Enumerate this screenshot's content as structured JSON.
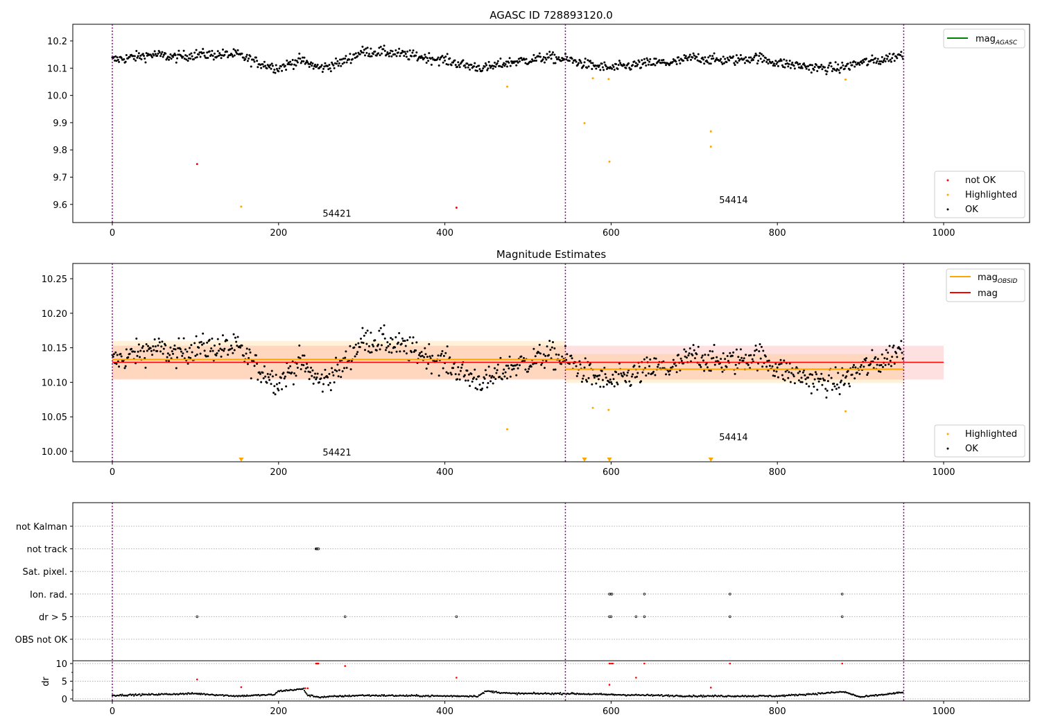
{
  "chart_data": [
    {
      "type": "scatter",
      "title": "AGASC ID 728893120.0",
      "xlim": [
        -47.5,
        1103.5
      ],
      "ylim": [
        9.534,
        10.261
      ],
      "xticks": [
        "0",
        "200",
        "400",
        "600",
        "800",
        "1000"
      ],
      "yticks": [
        "9.6",
        "9.7",
        "9.8",
        "9.9",
        "10.0",
        "10.1",
        "10.2"
      ],
      "legend_lines": [
        {
          "label": "mag",
          "sub": "AGASC",
          "color": "#008000"
        }
      ],
      "legend_points": [
        {
          "label": "not OK",
          "color": "#ff0000"
        },
        {
          "label": "Highlighted",
          "color": "#ffa500"
        },
        {
          "label": "OK",
          "color": "#000000"
        }
      ],
      "obsid_boundaries": [
        0,
        545,
        952
      ],
      "annotations": [
        {
          "text": "54421",
          "x": 253,
          "y": 9.555
        },
        {
          "text": "54414",
          "x": 730,
          "y": 9.605
        }
      ],
      "ok_trend": {
        "x_step": 25,
        "values": [
          10.13,
          10.14,
          10.15,
          10.14,
          10.15,
          10.15,
          10.15,
          10.12,
          10.1,
          10.13,
          10.1,
          10.12,
          10.16,
          10.16,
          10.15,
          10.14,
          10.13,
          10.11,
          10.1,
          10.12,
          10.13,
          10.14,
          10.13,
          10.11,
          10.1,
          10.11,
          10.12,
          10.12,
          10.14,
          10.13,
          10.13,
          10.14,
          10.12,
          10.11,
          10.1,
          10.1,
          10.12,
          10.13,
          10.15
        ],
        "noise": 0.016,
        "n_points": 952
      },
      "not_ok": [
        [
          102,
          9.748
        ],
        [
          414,
          9.588
        ]
      ],
      "highlighted": [
        [
          155,
          9.592
        ],
        [
          475,
          10.032
        ],
        [
          568,
          9.898
        ],
        [
          578,
          10.063
        ],
        [
          597,
          10.06
        ],
        [
          598,
          9.757
        ],
        [
          720,
          9.868
        ],
        [
          720,
          9.812
        ],
        [
          882,
          10.058
        ]
      ]
    },
    {
      "type": "scatter",
      "title": "Magnitude Estimates",
      "xlim": [
        -47.5,
        1103.5
      ],
      "ylim": [
        9.985,
        10.272
      ],
      "xticks": [
        "0",
        "200",
        "400",
        "600",
        "800",
        "1000"
      ],
      "yticks": [
        "10.00",
        "10.05",
        "10.10",
        "10.15",
        "10.20",
        "10.25"
      ],
      "legend_lines": [
        {
          "label": "mag",
          "sub": "OBSID",
          "color": "#ffa500"
        },
        {
          "label": "mag",
          "sub": "",
          "color": "#ff0000"
        }
      ],
      "legend_points": [
        {
          "label": "Highlighted",
          "color": "#ffa500"
        },
        {
          "label": "OK",
          "color": "#000000"
        }
      ],
      "mag": {
        "x": [
          0,
          1000
        ],
        "value": 10.129,
        "band": [
          10.104,
          10.153
        ]
      },
      "mag_obsid": [
        {
          "x": [
            0,
            545
          ],
          "value": 10.133,
          "band": [
            10.105,
            10.16
          ]
        },
        {
          "x": [
            545,
            952
          ],
          "value": 10.119,
          "band": [
            10.099,
            10.141
          ]
        }
      ],
      "annotations": [
        {
          "text": "54421",
          "x": 253,
          "y": 9.994
        },
        {
          "text": "54414",
          "x": 730,
          "y": 10.016
        }
      ]
    },
    {
      "type": "scatter",
      "title": "",
      "flag_rows": [
        "not Kalman",
        "not track",
        "Sat. pixel.",
        "Ion. rad.",
        "dr > 5",
        "OBS not OK"
      ],
      "flags": {
        "not track": [
          245,
          246,
          247,
          248
        ],
        "Ion. rad.": [
          598,
          600,
          601,
          640,
          743,
          878
        ],
        "dr > 5": [
          102,
          280,
          414,
          598,
          600,
          630,
          640,
          743,
          878
        ]
      },
      "dr_ylabel": "dr",
      "dr_yticks": [
        "0",
        "5",
        "10"
      ],
      "dr_trend": {
        "x": [
          0,
          100,
          150,
          195,
          200,
          230,
          235,
          250,
          300,
          400,
          440,
          450,
          480,
          550,
          600,
          700,
          800,
          850,
          880,
          900,
          950
        ],
        "values": [
          1,
          1.5,
          0.8,
          1.2,
          2.2,
          2.8,
          1.0,
          0.5,
          1,
          0.8,
          0.8,
          2.2,
          1.5,
          1.5,
          1.2,
          0.8,
          0.8,
          1.5,
          2,
          0.5,
          1.8
        ]
      },
      "dr_red": [
        [
          102,
          5.5
        ],
        [
          155,
          3.3
        ],
        [
          232,
          3
        ],
        [
          235,
          3
        ],
        [
          245,
          10
        ],
        [
          246,
          10
        ],
        [
          247,
          10
        ],
        [
          248,
          10
        ],
        [
          280,
          9.3
        ],
        [
          414,
          6
        ],
        [
          598,
          4
        ],
        [
          598,
          10
        ],
        [
          600,
          10
        ],
        [
          602,
          10
        ],
        [
          630,
          6
        ],
        [
          640,
          10
        ],
        [
          720,
          3.2
        ],
        [
          743,
          10
        ],
        [
          878,
          10
        ]
      ],
      "xticks": [
        "0",
        "200",
        "400",
        "600",
        "800",
        "1000"
      ]
    }
  ]
}
